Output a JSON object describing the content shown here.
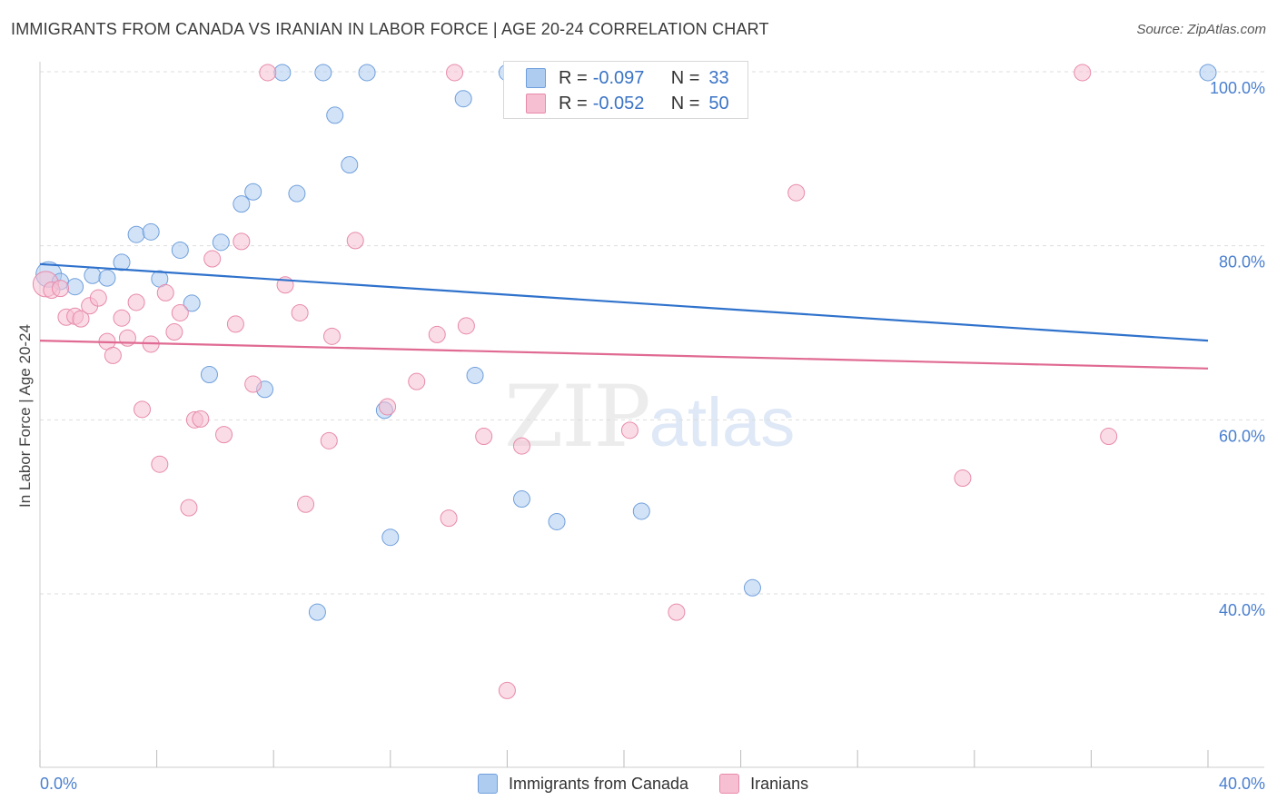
{
  "title": "IMMIGRANTS FROM CANADA VS IRANIAN IN LABOR FORCE | AGE 20-24 CORRELATION CHART",
  "source": "Source: ZipAtlas.com",
  "watermark": {
    "zip": "ZIP",
    "atlas": "atlas"
  },
  "colors": {
    "blue_fill": "#aeccf0",
    "blue_stroke": "#6f9fdc",
    "blue_line": "#2f72cc",
    "pink_fill": "#f6bfd2",
    "pink_stroke": "#e88aab",
    "pink_line": "#e06a93",
    "tick_text": "#4a7fcf",
    "grid": "#dddddd"
  },
  "legend": {
    "rows": [
      {
        "r_label": "R =",
        "r_value": "-0.097",
        "n_label": "N =",
        "n_value": "33",
        "color": "#aeccf0",
        "stroke": "#6f9fdc"
      },
      {
        "r_label": "R =",
        "r_value": "-0.052",
        "n_label": "N =",
        "n_value": "50",
        "color": "#f6bfd2",
        "stroke": "#e88aab"
      }
    ]
  },
  "bottom_legend": [
    {
      "label": "Immigrants from Canada",
      "color": "#aeccf0",
      "stroke": "#6f9fdc"
    },
    {
      "label": "Iranians",
      "color": "#f6bfd2",
      "stroke": "#e88aab"
    }
  ],
  "chart_data": {
    "type": "scatter",
    "title": "IMMIGRANTS FROM CANADA VS IRANIAN IN LABOR FORCE | AGE 20-24 CORRELATION CHART",
    "xlabel": "",
    "ylabel": "In Labor Force | Age 20-24",
    "xlim": [
      0,
      40
    ],
    "ylim": [
      21,
      102
    ],
    "x_ticks_labeled": [
      {
        "value": 0,
        "label": "0.0%"
      },
      {
        "value": 40,
        "label": "40.0%"
      }
    ],
    "y_ticks": [
      {
        "value": 100,
        "label": "100.0%"
      },
      {
        "value": 80,
        "label": "80.0%"
      },
      {
        "value": 60,
        "label": "60.0%"
      },
      {
        "value": 40,
        "label": "40.0%"
      }
    ],
    "x_minor_ticks": [
      0,
      4,
      8,
      12,
      16,
      20,
      24,
      28,
      32,
      36,
      40
    ],
    "series": [
      {
        "name": "Immigrants from Canada",
        "trend": {
          "x": [
            0,
            40
          ],
          "y": [
            77.9,
            69.1
          ]
        },
        "points": [
          [
            0.3,
            76.7,
            14
          ],
          [
            0.7,
            75.9,
            9
          ],
          [
            1.2,
            75.3,
            9
          ],
          [
            1.8,
            76.6,
            9
          ],
          [
            2.3,
            76.3,
            9
          ],
          [
            2.8,
            78.1,
            9
          ],
          [
            3.3,
            81.3,
            9
          ],
          [
            3.8,
            81.6,
            9
          ],
          [
            4.1,
            76.2,
            9
          ],
          [
            4.8,
            79.5,
            9
          ],
          [
            5.2,
            73.4,
            9
          ],
          [
            5.8,
            65.2,
            9
          ],
          [
            6.2,
            80.4,
            9
          ],
          [
            6.9,
            84.8,
            9
          ],
          [
            7.3,
            86.2,
            9
          ],
          [
            7.7,
            63.5,
            9
          ],
          [
            8.3,
            99.9,
            9
          ],
          [
            8.8,
            86.0,
            9
          ],
          [
            9.5,
            37.9,
            9
          ],
          [
            9.7,
            99.9,
            9
          ],
          [
            10.1,
            95.0,
            9
          ],
          [
            10.6,
            89.3,
            9
          ],
          [
            11.2,
            99.9,
            9
          ],
          [
            11.8,
            61.1,
            9
          ],
          [
            12.0,
            46.5,
            9
          ],
          [
            14.5,
            96.9,
            9
          ],
          [
            14.9,
            65.1,
            9
          ],
          [
            16.0,
            99.9,
            9
          ],
          [
            16.5,
            50.9,
            9
          ],
          [
            17.7,
            48.3,
            9
          ],
          [
            20.6,
            49.5,
            9
          ],
          [
            24.4,
            40.7,
            9
          ],
          [
            40.0,
            99.9,
            9
          ]
        ]
      },
      {
        "name": "Iranians",
        "trend": {
          "x": [
            0,
            40
          ],
          "y": [
            69.1,
            65.9
          ]
        },
        "points": [
          [
            0.2,
            75.6,
            14
          ],
          [
            0.4,
            74.9,
            9
          ],
          [
            0.7,
            75.1,
            9
          ],
          [
            0.9,
            71.8,
            9
          ],
          [
            1.2,
            71.9,
            9
          ],
          [
            1.4,
            71.6,
            9
          ],
          [
            1.7,
            73.1,
            9
          ],
          [
            2.0,
            74.0,
            9
          ],
          [
            2.3,
            69.0,
            9
          ],
          [
            2.5,
            67.4,
            9
          ],
          [
            2.8,
            71.7,
            9
          ],
          [
            3.0,
            69.4,
            9
          ],
          [
            3.3,
            73.5,
            9
          ],
          [
            3.5,
            61.2,
            9
          ],
          [
            3.8,
            68.7,
            9
          ],
          [
            4.1,
            54.9,
            9
          ],
          [
            4.3,
            74.6,
            9
          ],
          [
            4.6,
            70.1,
            9
          ],
          [
            4.8,
            72.3,
            9
          ],
          [
            5.1,
            49.9,
            9
          ],
          [
            5.3,
            60.0,
            9
          ],
          [
            5.5,
            60.1,
            9
          ],
          [
            5.9,
            78.5,
            9
          ],
          [
            6.3,
            58.3,
            9
          ],
          [
            6.7,
            71.0,
            9
          ],
          [
            6.9,
            80.5,
            9
          ],
          [
            7.3,
            64.1,
            9
          ],
          [
            7.8,
            99.9,
            9
          ],
          [
            8.4,
            75.5,
            9
          ],
          [
            8.9,
            72.3,
            9
          ],
          [
            9.1,
            50.3,
            9
          ],
          [
            9.9,
            57.6,
            9
          ],
          [
            10.0,
            69.6,
            9
          ],
          [
            10.8,
            80.6,
            9
          ],
          [
            11.9,
            61.5,
            9
          ],
          [
            12.9,
            64.4,
            9
          ],
          [
            13.6,
            69.8,
            9
          ],
          [
            14.0,
            48.7,
            9
          ],
          [
            14.2,
            99.9,
            9
          ],
          [
            14.6,
            70.8,
            9
          ],
          [
            15.2,
            58.1,
            9
          ],
          [
            16.0,
            28.9,
            9
          ],
          [
            16.5,
            57.0,
            9
          ],
          [
            17.6,
            99.9,
            9
          ],
          [
            20.2,
            58.8,
            9
          ],
          [
            21.8,
            37.9,
            9
          ],
          [
            25.9,
            86.1,
            9
          ],
          [
            31.6,
            53.3,
            9
          ],
          [
            35.7,
            99.9,
            9
          ],
          [
            36.6,
            58.1,
            9
          ]
        ]
      }
    ]
  }
}
